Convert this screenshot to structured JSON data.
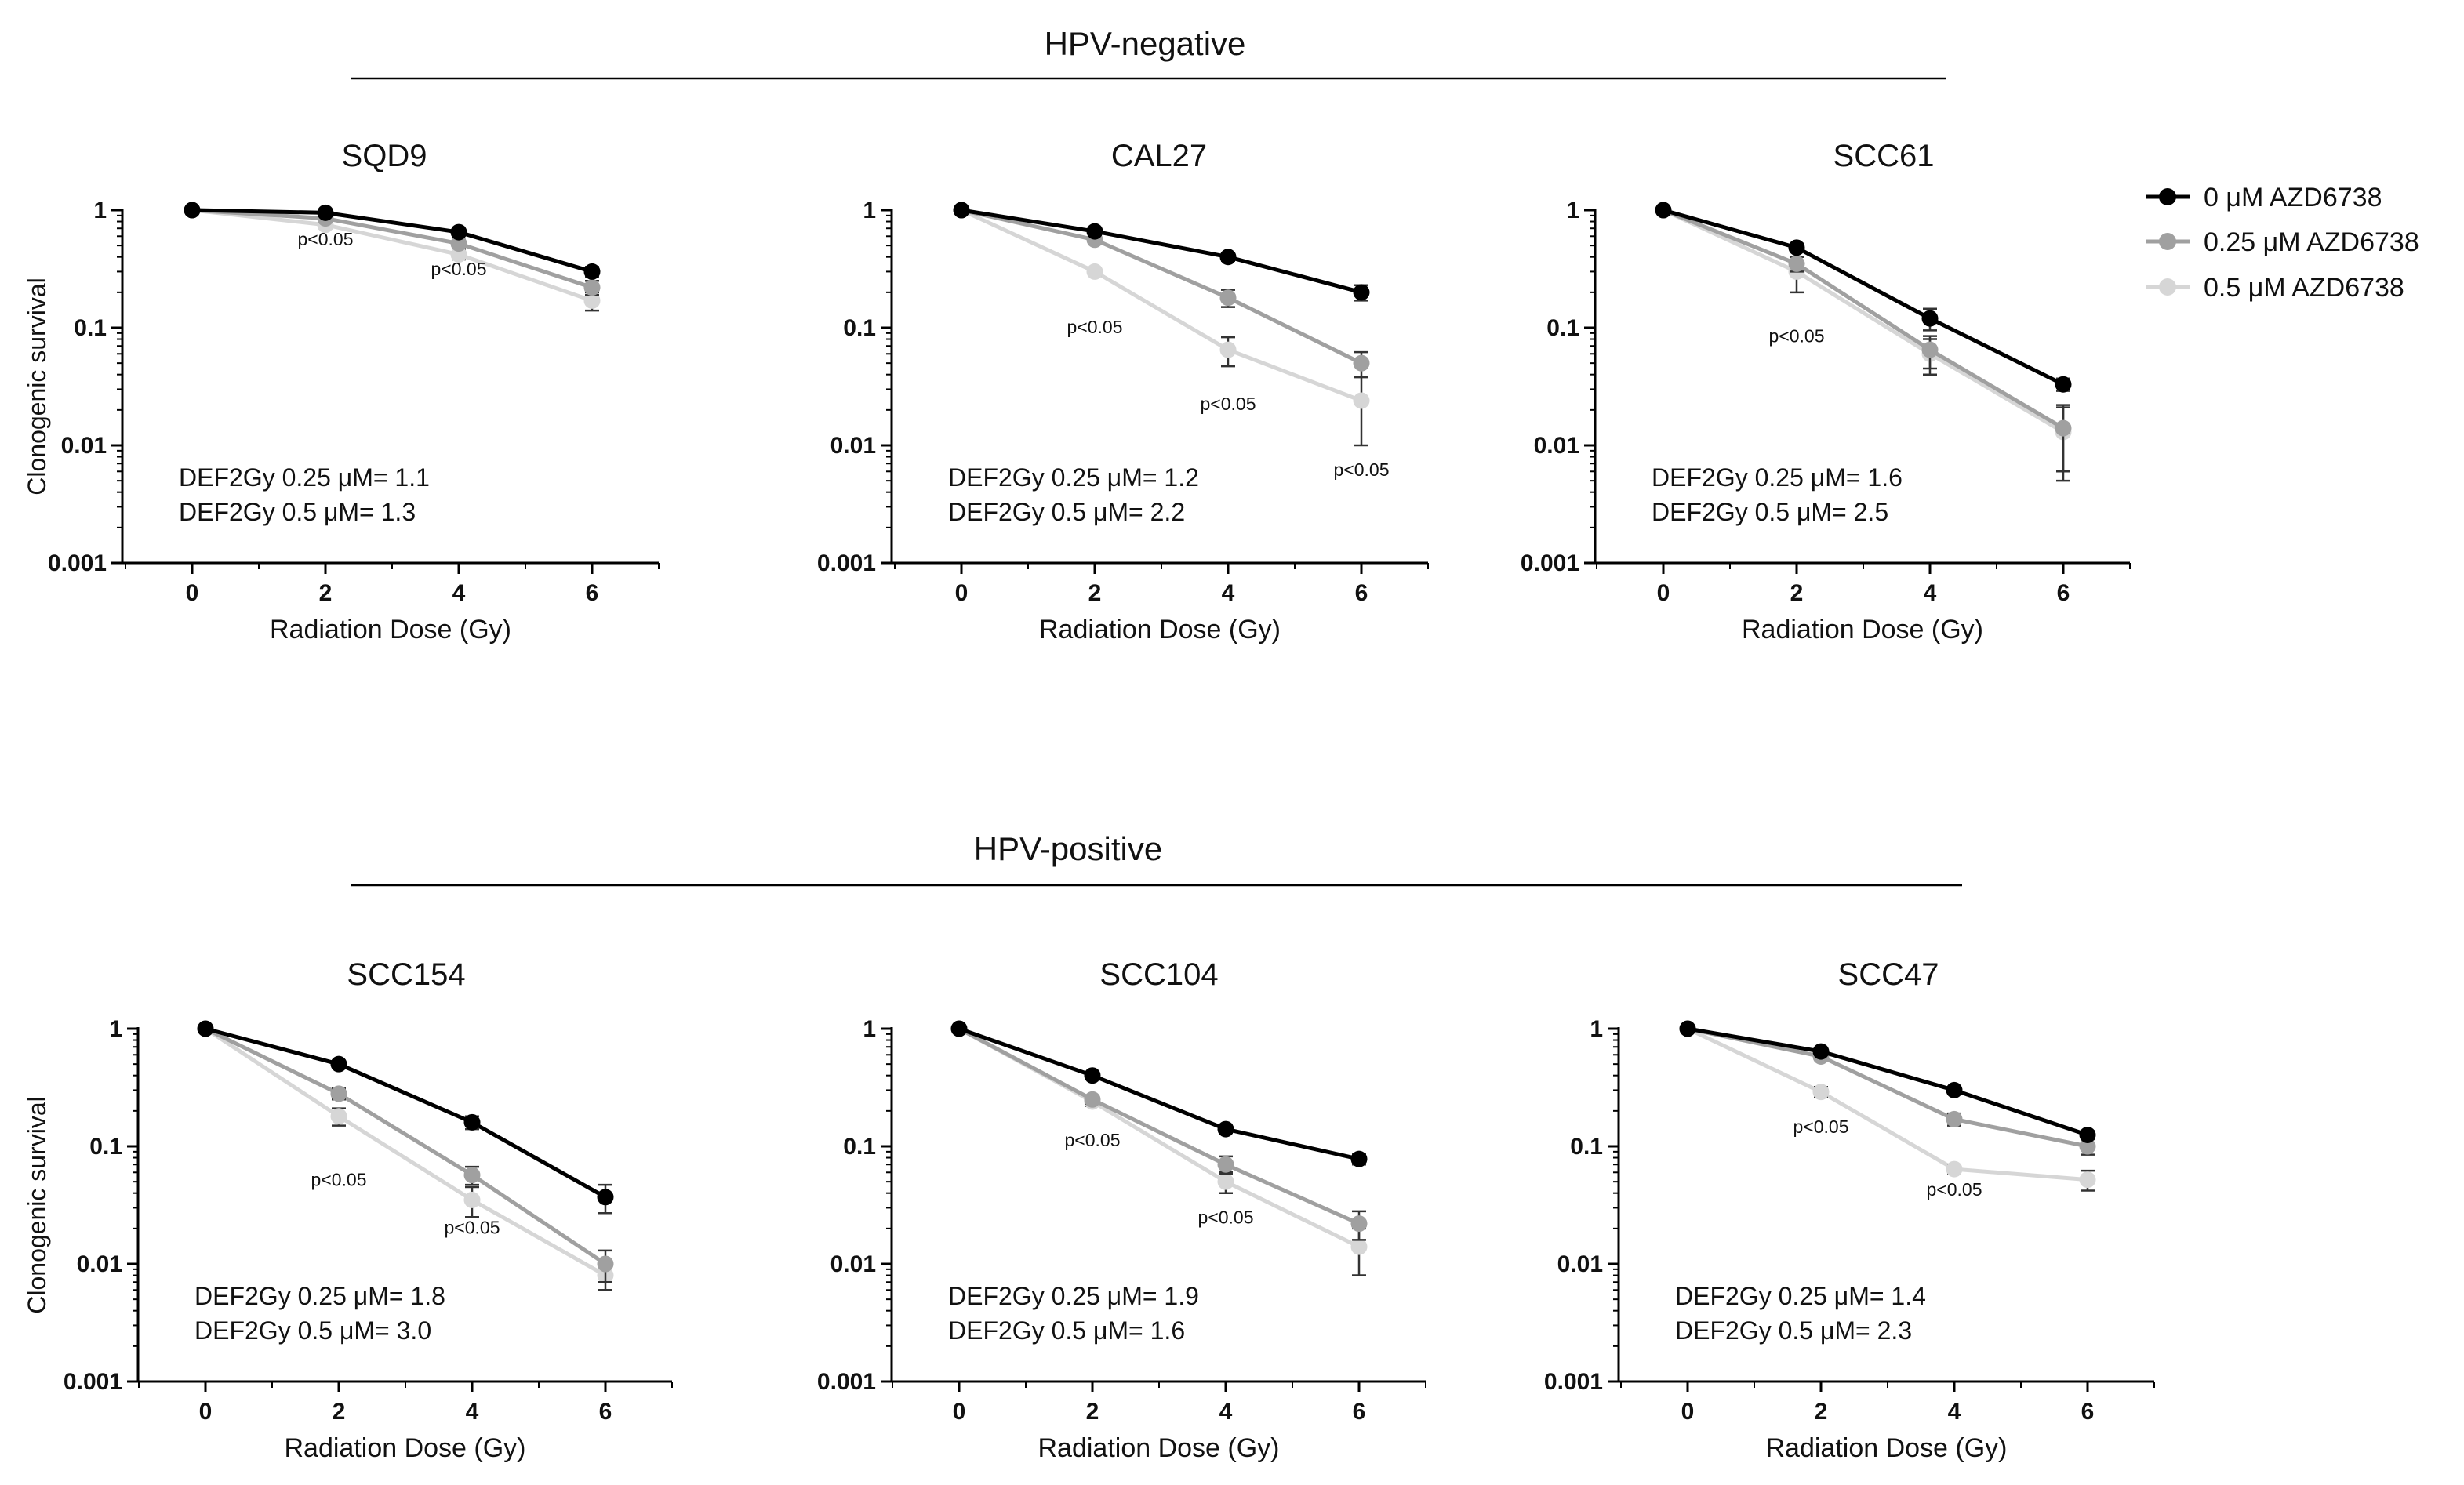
{
  "figure": {
    "colors": {
      "series0": "#000000",
      "series1": "#a0a0a0",
      "series2": "#d6d6d6",
      "axis": "#000000",
      "rule": "#000000"
    },
    "group_titles": [
      "HPV-negative",
      "HPV-positive"
    ],
    "legend": [
      "0 μM AZD6738",
      "0.25 μM AZD6738",
      "0.5 μM AZD6738"
    ]
  },
  "chart_data": [
    {
      "type": "line",
      "group": "HPV-negative",
      "title": "SQD9",
      "xlabel": "Radiation Dose (Gy)",
      "ylabel": "Clonogenic survival",
      "yscale": "log",
      "ylim": [
        0.001,
        1
      ],
      "xlim": [
        -1,
        7
      ],
      "xticks": [
        "0",
        "2",
        "4",
        "6"
      ],
      "yticks": [
        "1",
        "0.1",
        "0.01",
        "0.001"
      ],
      "x": [
        0,
        2,
        4,
        6
      ],
      "series": [
        {
          "name": "0 μM AZD6738",
          "values": [
            1,
            0.95,
            0.65,
            0.3
          ],
          "err": [
            0,
            0.04,
            0.04,
            0.03
          ]
        },
        {
          "name": "0.25 μM AZD6738",
          "values": [
            1,
            0.85,
            0.52,
            0.22
          ],
          "err": [
            0,
            0.04,
            0.04,
            0.03
          ]
        },
        {
          "name": "0.5 μM AZD6738",
          "values": [
            1,
            0.75,
            0.42,
            0.17
          ],
          "err": [
            0,
            0.05,
            0.04,
            0.03
          ]
        }
      ],
      "def_text": [
        "DEF2Gy 0.25 μM= 1.1",
        "DEF2Gy 0.5 μM= 1.3"
      ],
      "pvalues": [
        {
          "text": "p<0.05",
          "x": 2,
          "y": 0.5
        },
        {
          "text": "p<0.05",
          "x": 4,
          "y": 0.28
        }
      ]
    },
    {
      "type": "line",
      "group": "HPV-negative",
      "title": "CAL27",
      "xlabel": "Radiation Dose (Gy)",
      "ylabel": "",
      "yscale": "log",
      "ylim": [
        0.001,
        1
      ],
      "xlim": [
        -1,
        7
      ],
      "xticks": [
        "0",
        "2",
        "4",
        "6"
      ],
      "yticks": [
        "1",
        "0.1",
        "0.01",
        "0.001"
      ],
      "x": [
        0,
        2,
        4,
        6
      ],
      "series": [
        {
          "name": "0 μM AZD6738",
          "values": [
            1,
            0.66,
            0.4,
            0.2
          ],
          "err": [
            0,
            0.03,
            0.03,
            0.03
          ]
        },
        {
          "name": "0.25 μM AZD6738",
          "values": [
            1,
            0.56,
            0.18,
            0.05
          ],
          "err": [
            0,
            0.03,
            0.03,
            0.012
          ]
        },
        {
          "name": "0.5 μM AZD6738",
          "values": [
            1,
            0.3,
            0.065,
            0.024
          ],
          "err": [
            0,
            0.02,
            0.018,
            0.014
          ]
        }
      ],
      "def_text": [
        "DEF2Gy 0.25 μM= 1.2",
        "DEF2Gy 0.5 μM= 2.2"
      ],
      "pvalues": [
        {
          "text": "p<0.05",
          "x": 2,
          "y": 0.09
        },
        {
          "text": "p<0.05",
          "x": 4,
          "y": 0.02
        },
        {
          "text": "p<0.05",
          "x": 6,
          "y": 0.0055
        }
      ]
    },
    {
      "type": "line",
      "group": "HPV-negative",
      "title": "SCC61",
      "xlabel": "Radiation Dose (Gy)",
      "ylabel": "",
      "yscale": "log",
      "ylim": [
        0.001,
        1
      ],
      "xlim": [
        -1,
        7
      ],
      "xticks": [
        "0",
        "2",
        "4",
        "6"
      ],
      "yticks": [
        "1",
        "0.1",
        "0.01",
        "0.001"
      ],
      "x": [
        0,
        2,
        4,
        6
      ],
      "series": [
        {
          "name": "0 μM AZD6738",
          "values": [
            1,
            0.48,
            0.12,
            0.033
          ],
          "err": [
            0,
            0.04,
            0.025,
            0.004
          ]
        },
        {
          "name": "0.25 μM AZD6738",
          "values": [
            1,
            0.35,
            0.065,
            0.014
          ],
          "err": [
            0,
            0.05,
            0.02,
            0.008
          ]
        },
        {
          "name": "0.5 μM AZD6738",
          "values": [
            1,
            0.3,
            0.06,
            0.013
          ],
          "err": [
            0,
            0.1,
            0.02,
            0.008
          ]
        }
      ],
      "def_text": [
        "DEF2Gy 0.25 μM= 1.6",
        "DEF2Gy 0.5 μM= 2.5"
      ],
      "pvalues": [
        {
          "text": "p<0.05",
          "x": 2,
          "y": 0.075
        }
      ]
    },
    {
      "type": "line",
      "group": "HPV-positive",
      "title": "SCC154",
      "xlabel": "Radiation Dose (Gy)",
      "ylabel": "Clonogenic survival",
      "yscale": "log",
      "ylim": [
        0.001,
        1
      ],
      "xlim": [
        -1,
        7
      ],
      "xticks": [
        "0",
        "2",
        "4",
        "6"
      ],
      "yticks": [
        "1",
        "0.1",
        "0.01",
        "0.001"
      ],
      "x": [
        0,
        2,
        4,
        6
      ],
      "series": [
        {
          "name": "0 μM AZD6738",
          "values": [
            1,
            0.5,
            0.16,
            0.037
          ],
          "err": [
            0,
            0.03,
            0.02,
            0.01
          ]
        },
        {
          "name": "0.25 μM AZD6738",
          "values": [
            1,
            0.28,
            0.057,
            0.01
          ],
          "err": [
            0,
            0.03,
            0.01,
            0.003
          ]
        },
        {
          "name": "0.5 μM AZD6738",
          "values": [
            1,
            0.18,
            0.035,
            0.008
          ],
          "err": [
            0,
            0.03,
            0.01,
            0.002
          ]
        }
      ],
      "def_text": [
        "DEF2Gy 0.25 μM= 1.8",
        "DEF2Gy 0.5 μM= 3.0"
      ],
      "pvalues": [
        {
          "text": "p<0.05",
          "x": 2,
          "y": 0.046
        },
        {
          "text": "p<0.05",
          "x": 4,
          "y": 0.018
        }
      ]
    },
    {
      "type": "line",
      "group": "HPV-positive",
      "title": "SCC104",
      "xlabel": "Radiation Dose (Gy)",
      "ylabel": "",
      "yscale": "log",
      "ylim": [
        0.001,
        1
      ],
      "xlim": [
        -1,
        7
      ],
      "xticks": [
        "0",
        "2",
        "4",
        "6"
      ],
      "yticks": [
        "1",
        "0.1",
        "0.01",
        "0.001"
      ],
      "x": [
        0,
        2,
        4,
        6
      ],
      "series": [
        {
          "name": "0 μM AZD6738",
          "values": [
            1,
            0.4,
            0.14,
            0.078
          ],
          "err": [
            0,
            0.03,
            0.01,
            0.008
          ]
        },
        {
          "name": "0.25 μM AZD6738",
          "values": [
            1,
            0.25,
            0.07,
            0.022
          ],
          "err": [
            0,
            0.02,
            0.012,
            0.006
          ]
        },
        {
          "name": "0.5 μM AZD6738",
          "values": [
            1,
            0.24,
            0.05,
            0.014
          ],
          "err": [
            0,
            0.02,
            0.01,
            0.006
          ]
        }
      ],
      "def_text": [
        "DEF2Gy 0.25 μM= 1.9",
        "DEF2Gy 0.5 μM= 1.6"
      ],
      "pvalues": [
        {
          "text": "p<0.05",
          "x": 2,
          "y": 0.1
        },
        {
          "text": "p<0.05",
          "x": 4,
          "y": 0.022
        }
      ]
    },
    {
      "type": "line",
      "group": "HPV-positive",
      "title": "SCC47",
      "xlabel": "Radiation Dose (Gy)",
      "ylabel": "",
      "yscale": "log",
      "ylim": [
        0.001,
        1
      ],
      "xlim": [
        -1,
        7
      ],
      "xticks": [
        "0",
        "2",
        "4",
        "6"
      ],
      "yticks": [
        "1",
        "0.1",
        "0.01",
        "0.001"
      ],
      "x": [
        0,
        2,
        4,
        6
      ],
      "series": [
        {
          "name": "0 μM AZD6738",
          "values": [
            1,
            0.64,
            0.3,
            0.125
          ],
          "err": [
            0,
            0.03,
            0.02,
            0.01
          ]
        },
        {
          "name": "0.25 μM AZD6738",
          "values": [
            1,
            0.58,
            0.17,
            0.1
          ],
          "err": [
            0,
            0.03,
            0.02,
            0.015
          ]
        },
        {
          "name": "0.5 μM AZD6738",
          "values": [
            1,
            0.29,
            0.064,
            0.052
          ],
          "err": [
            0,
            0.03,
            0.006,
            0.01
          ]
        }
      ],
      "def_text": [
        "DEF2Gy 0.25 μM= 1.4",
        "DEF2Gy 0.5 μM= 2.3"
      ],
      "pvalues": [
        {
          "text": "p<0.05",
          "x": 2,
          "y": 0.13
        },
        {
          "text": "p<0.05",
          "x": 4,
          "y": 0.038
        }
      ]
    }
  ]
}
